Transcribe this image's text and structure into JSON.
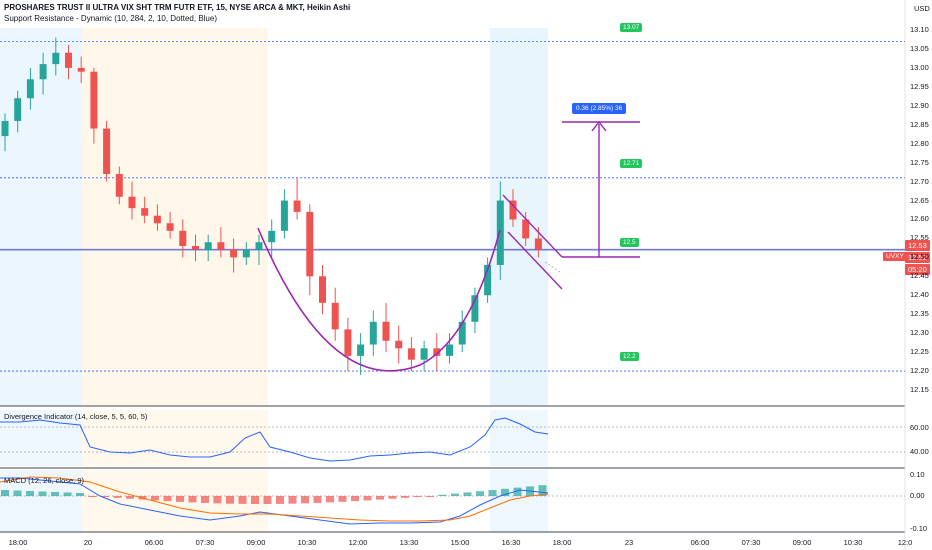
{
  "chart_header": {
    "symbol_line": "PROSHARES TRUST II ULTRA VIX SHT TRM FUTR ETF, 15, NYSE ARCA & MKT, Heikin Ashi",
    "indicator_line": "Support Resistance - Dynamic (10, 284, 2, 10, Dotted, Blue)"
  },
  "currency": "USD",
  "ticker_tag": "UVXY",
  "price_tags": {
    "last": "12.53",
    "current": "12.52",
    "countdown": "05:20"
  },
  "measure_label": "0.36 (2.85%) 36",
  "levels": [
    {
      "label": "13.07",
      "value": 13.07
    },
    {
      "label": "12.71",
      "value": 12.71
    },
    {
      "label": "12.5",
      "value": 12.52
    },
    {
      "label": "12.2",
      "value": 12.2
    }
  ],
  "y_axis_labels": [
    "13.10",
    "13.05",
    "13.00",
    "12.95",
    "12.90",
    "12.85",
    "12.80",
    "12.75",
    "12.70",
    "12.65",
    "12.60",
    "12.55",
    "12.50",
    "12.45",
    "12.40",
    "12.35",
    "12.30",
    "12.25",
    "12.20",
    "12.15"
  ],
  "x_axis_labels": [
    "18:00",
    "20",
    "06:00",
    "07:30",
    "09:00",
    "10:30",
    "12:00",
    "13:30",
    "15:00",
    "16:30",
    "18:00",
    "23",
    "06:00",
    "07:30",
    "09:00",
    "10:30",
    "12:0"
  ],
  "divergence": {
    "title": "Divergence Indicator (14, close, 5, 5, 60, 5)",
    "labels": [
      "60.00",
      "40.00"
    ]
  },
  "macd": {
    "title": "MACD (12, 26, close, 9)",
    "labels": [
      "0.10",
      "0.00",
      "-0.10"
    ]
  },
  "colors": {
    "up": "#26a69a",
    "down": "#ef5350",
    "level_line": "#2962ff",
    "pattern": "#9c27b0",
    "level_badge": "#22c55e"
  },
  "chart_data": {
    "type": "candlestick",
    "x_type": "bar index (15-minute Heikin Ashi bars)",
    "ylim": [
      12.15,
      13.1
    ],
    "candles_ohlc": [
      [
        12.82,
        12.88,
        12.78,
        12.86
      ],
      [
        12.86,
        12.94,
        12.83,
        12.92
      ],
      [
        12.92,
        13.0,
        12.89,
        12.97
      ],
      [
        12.97,
        13.04,
        12.93,
        13.01
      ],
      [
        13.01,
        13.08,
        12.98,
        13.04
      ],
      [
        13.04,
        13.06,
        12.97,
        13.0
      ],
      [
        13.0,
        13.03,
        12.96,
        12.99
      ],
      [
        12.99,
        13.0,
        12.8,
        12.84
      ],
      [
        12.84,
        12.86,
        12.7,
        12.72
      ],
      [
        12.72,
        12.74,
        12.64,
        12.66
      ],
      [
        12.66,
        12.7,
        12.6,
        12.63
      ],
      [
        12.63,
        12.66,
        12.59,
        12.61
      ],
      [
        12.61,
        12.64,
        12.57,
        12.59
      ],
      [
        12.59,
        12.62,
        12.55,
        12.57
      ],
      [
        12.57,
        12.6,
        12.5,
        12.53
      ],
      [
        12.53,
        12.56,
        12.49,
        12.52
      ],
      [
        12.52,
        12.56,
        12.49,
        12.54
      ],
      [
        12.54,
        12.58,
        12.5,
        12.52
      ],
      [
        12.52,
        12.55,
        12.46,
        12.5
      ],
      [
        12.5,
        12.54,
        12.48,
        12.52
      ],
      [
        12.52,
        12.56,
        12.48,
        12.54
      ],
      [
        12.54,
        12.6,
        12.5,
        12.57
      ],
      [
        12.57,
        12.68,
        12.55,
        12.65
      ],
      [
        12.65,
        12.71,
        12.6,
        12.62
      ],
      [
        12.62,
        12.64,
        12.4,
        12.45
      ],
      [
        12.45,
        12.48,
        12.35,
        12.38
      ],
      [
        12.38,
        12.42,
        12.28,
        12.31
      ],
      [
        12.31,
        12.34,
        12.2,
        12.24
      ],
      [
        12.24,
        12.3,
        12.19,
        12.27
      ],
      [
        12.27,
        12.36,
        12.24,
        12.33
      ],
      [
        12.33,
        12.38,
        12.25,
        12.28
      ],
      [
        12.28,
        12.32,
        12.22,
        12.26
      ],
      [
        12.26,
        12.29,
        12.2,
        12.23
      ],
      [
        12.23,
        12.28,
        12.2,
        12.26
      ],
      [
        12.26,
        12.3,
        12.2,
        12.24
      ],
      [
        12.24,
        12.3,
        12.22,
        12.27
      ],
      [
        12.27,
        12.36,
        12.25,
        12.33
      ],
      [
        12.33,
        12.42,
        12.3,
        12.4
      ],
      [
        12.4,
        12.5,
        12.38,
        12.48
      ],
      [
        12.48,
        12.7,
        12.44,
        12.65
      ],
      [
        12.65,
        12.68,
        12.58,
        12.6
      ],
      [
        12.6,
        12.62,
        12.53,
        12.55
      ],
      [
        12.55,
        12.58,
        12.5,
        12.52
      ]
    ]
  }
}
